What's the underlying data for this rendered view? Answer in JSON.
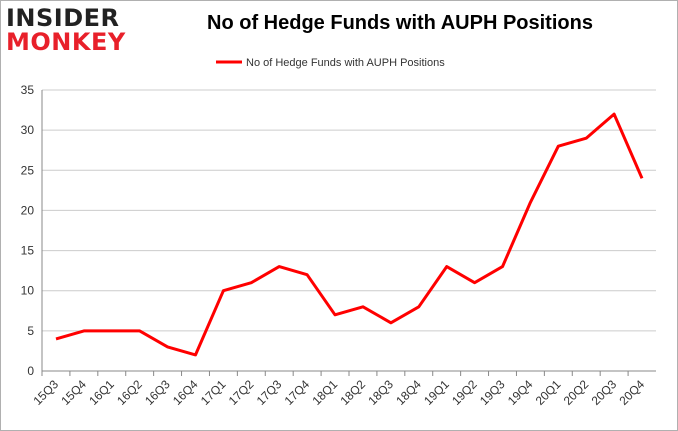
{
  "logo": {
    "line1": "INSIDER",
    "line2": "MONKEY"
  },
  "colors": {
    "series": "#ff0000",
    "grid": "#cccccc",
    "brand_red": "#e8202a"
  },
  "chart_data": {
    "type": "line",
    "title": "No of Hedge Funds with AUPH Positions",
    "xlabel": "",
    "ylabel": "",
    "categories": [
      "15Q3",
      "15Q4",
      "16Q1",
      "16Q2",
      "16Q3",
      "16Q4",
      "17Q1",
      "17Q2",
      "17Q3",
      "17Q4",
      "18Q1",
      "18Q2",
      "18Q3",
      "18Q4",
      "19Q1",
      "19Q2",
      "19Q3",
      "19Q4",
      "20Q1",
      "20Q2",
      "20Q3",
      "20Q4"
    ],
    "series": [
      {
        "name": "No of Hedge Funds with AUPH Positions",
        "values": [
          4,
          5,
          5,
          5,
          3,
          2,
          10,
          11,
          13,
          12,
          7,
          8,
          6,
          8,
          13,
          11,
          13,
          21,
          28,
          29,
          32,
          24
        ]
      }
    ],
    "ylim": [
      0,
      35
    ],
    "yticks": [
      0,
      5,
      10,
      15,
      20,
      25,
      30,
      35
    ],
    "grid": true,
    "legend": "top-center"
  }
}
